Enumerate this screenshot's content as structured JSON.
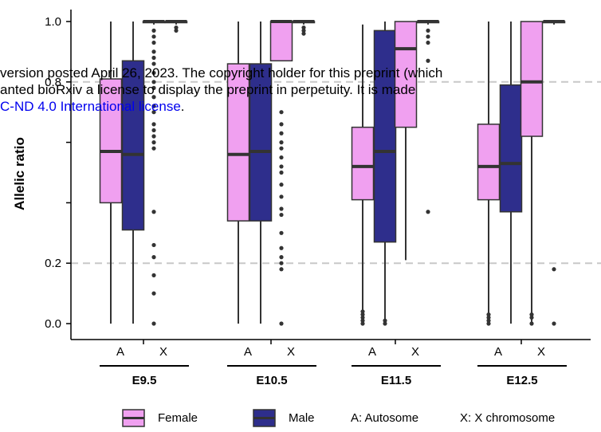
{
  "chart_data": {
    "type": "boxplot",
    "ylabel": "Allelic ratio",
    "ylim": [
      0,
      1
    ],
    "yticks": [
      {
        "value": 0.0,
        "label": "0.0"
      },
      {
        "value": 0.2,
        "label": "0.2"
      },
      {
        "value": 0.8,
        "label": "0.8"
      },
      {
        "value": 1.0,
        "label": "1.0"
      }
    ],
    "reference_lines": [
      0.2,
      0.8
    ],
    "grid": false,
    "legend": {
      "placement": "bottom",
      "items": [
        {
          "label": "Female",
          "color": "#f0a0f0"
        },
        {
          "label": "Male",
          "color": "#2e2e8c"
        }
      ],
      "notes": [
        "A: Autosome",
        "X: X chromosome"
      ]
    },
    "groups": [
      {
        "stage": "E9.5",
        "categories": [
          {
            "label": "A",
            "boxes": [
              {
                "sex": "Female",
                "whisker_low": 0.0,
                "q1": 0.4,
                "median": 0.57,
                "q3": 0.81,
                "whisker_high": 1.0
              },
              {
                "sex": "Male",
                "whisker_low": 0.0,
                "q1": 0.31,
                "median": 0.56,
                "q3": 0.87,
                "whisker_high": 1.0
              }
            ]
          },
          {
            "label": "X",
            "boxes": [
              {
                "sex": "Female",
                "whisker_low": 0.99,
                "q1": 1.0,
                "median": 1.0,
                "q3": 1.0,
                "whisker_high": 1.0,
                "outliers": [
                  0.0,
                  0.1,
                  0.16,
                  0.22,
                  0.26,
                  0.37,
                  0.58,
                  0.6,
                  0.62,
                  0.64,
                  0.66,
                  0.7,
                  0.72,
                  0.75,
                  0.78,
                  0.8,
                  0.83,
                  0.86,
                  0.88,
                  0.9,
                  0.93,
                  0.95,
                  0.97
                ]
              },
              {
                "sex": "Male",
                "whisker_low": 0.99,
                "q1": 1.0,
                "median": 1.0,
                "q3": 1.0,
                "whisker_high": 1.0,
                "outliers": [
                  0.97,
                  0.98
                ]
              }
            ]
          }
        ]
      },
      {
        "stage": "E10.5",
        "categories": [
          {
            "label": "A",
            "boxes": [
              {
                "sex": "Female",
                "whisker_low": 0.0,
                "q1": 0.34,
                "median": 0.56,
                "q3": 0.86,
                "whisker_high": 1.0
              },
              {
                "sex": "Male",
                "whisker_low": 0.0,
                "q1": 0.34,
                "median": 0.57,
                "q3": 0.86,
                "whisker_high": 1.0
              }
            ]
          },
          {
            "label": "X",
            "boxes": [
              {
                "sex": "Female",
                "whisker_low": 0.87,
                "q1": 0.87,
                "median": 1.0,
                "q3": 1.0,
                "whisker_high": 1.0,
                "outliers": [
                  0.0,
                  0.18,
                  0.2,
                  0.22,
                  0.25,
                  0.3,
                  0.36,
                  0.38,
                  0.42,
                  0.46,
                  0.5,
                  0.52,
                  0.55,
                  0.58,
                  0.6,
                  0.63,
                  0.66,
                  0.7
                ]
              },
              {
                "sex": "Male",
                "whisker_low": 0.99,
                "q1": 1.0,
                "median": 1.0,
                "q3": 1.0,
                "whisker_high": 1.0,
                "outliers": [
                  0.96,
                  0.97,
                  0.98
                ]
              }
            ]
          }
        ]
      },
      {
        "stage": "E11.5",
        "categories": [
          {
            "label": "A",
            "boxes": [
              {
                "sex": "Female",
                "whisker_low": 0.0,
                "q1": 0.41,
                "median": 0.52,
                "q3": 0.65,
                "whisker_high": 0.99,
                "outliers": [
                  0.0,
                  0.01,
                  0.02,
                  0.03,
                  0.04
                ]
              },
              {
                "sex": "Male",
                "whisker_low": 0.0,
                "q1": 0.27,
                "median": 0.57,
                "q3": 0.97,
                "whisker_high": 1.0,
                "outliers": [
                  0.0,
                  0.01
                ]
              }
            ]
          },
          {
            "label": "X",
            "boxes": [
              {
                "sex": "Female",
                "whisker_low": 0.21,
                "q1": 0.65,
                "median": 0.91,
                "q3": 1.0,
                "whisker_high": 1.0
              },
              {
                "sex": "Male",
                "whisker_low": 0.99,
                "q1": 1.0,
                "median": 1.0,
                "q3": 1.0,
                "whisker_high": 1.0,
                "outliers": [
                  0.37,
                  0.87,
                  0.93,
                  0.95,
                  0.97
                ]
              }
            ]
          }
        ]
      },
      {
        "stage": "E12.5",
        "categories": [
          {
            "label": "A",
            "boxes": [
              {
                "sex": "Female",
                "whisker_low": 0.0,
                "q1": 0.41,
                "median": 0.52,
                "q3": 0.66,
                "whisker_high": 1.0,
                "outliers": [
                  0.0,
                  0.01,
                  0.02,
                  0.03
                ]
              },
              {
                "sex": "Male",
                "whisker_low": 0.0,
                "q1": 0.37,
                "median": 0.53,
                "q3": 0.79,
                "whisker_high": 1.0
              }
            ]
          },
          {
            "label": "X",
            "boxes": [
              {
                "sex": "Female",
                "whisker_low": 0.0,
                "q1": 0.62,
                "median": 0.8,
                "q3": 1.0,
                "whisker_high": 1.0,
                "outliers": [
                  0.0,
                  0.02,
                  0.03
                ]
              },
              {
                "sex": "Male",
                "whisker_low": 0.99,
                "q1": 1.0,
                "median": 1.0,
                "q3": 1.0,
                "whisker_high": 1.0,
                "outliers": [
                  0.0,
                  0.18
                ]
              }
            ]
          }
        ]
      }
    ]
  },
  "watermark": {
    "line1": "version posted April 26, 2023. The copyright holder for this preprint (which",
    "line2": "anted bioRxiv a license to display the preprint in perpetuity. It is made",
    "line3_link": "C-ND 4.0 International license",
    "line3_end": "."
  }
}
